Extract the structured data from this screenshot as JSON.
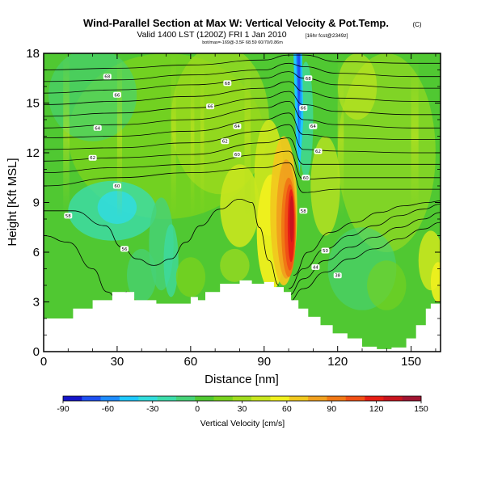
{
  "titles": {
    "main": "Wind-Parallel Section at Max W: Vertical Velocity & Pot.Temp.",
    "main_flag": "(C)",
    "valid": "Valid 1400 LST (1200Z) FRI 1 Jan 2010",
    "valid_suffix": "[16hr fcst@2349z]",
    "subtitle": "bot/max=-169@-3.5F 68.59 60/70/0.86m"
  },
  "chart_data": {
    "type": "heatmap",
    "title": "Wind-Parallel Section at Max W: Vertical Velocity & Pot.Temp.",
    "xlabel": "Distance [nm]",
    "ylabel": "Height [Kft MSL]",
    "xlim": [
      0,
      162
    ],
    "ylim": [
      0,
      18
    ],
    "xticks": [
      0,
      30,
      60,
      90,
      120,
      150
    ],
    "yticks": [
      0,
      3,
      6,
      9,
      12,
      15,
      18
    ],
    "colorbar": {
      "label": "Vertical Velocity [cm/s]",
      "ticks": [
        -90,
        -60,
        -30,
        0,
        30,
        60,
        90,
        120,
        150
      ],
      "range": [
        -90,
        150
      ],
      "colors": [
        "#1414c8",
        "#1e50f0",
        "#1e8cff",
        "#1ec8ff",
        "#32dcdc",
        "#3cdcaa",
        "#46d278",
        "#50c832",
        "#78d21e",
        "#a0dc1e",
        "#c8e61e",
        "#f0f01e",
        "#f0c81e",
        "#f0a01e",
        "#f07814",
        "#f05014",
        "#e61e14",
        "#c8141e",
        "#a01432"
      ]
    },
    "terrain": [
      [
        0,
        2
      ],
      [
        8,
        2
      ],
      [
        12,
        2.6
      ],
      [
        16,
        2.6
      ],
      [
        20,
        3.1
      ],
      [
        25,
        3.1
      ],
      [
        28,
        3.6
      ],
      [
        34,
        3.6
      ],
      [
        37,
        3.1
      ],
      [
        44,
        3.1
      ],
      [
        46,
        2.9
      ],
      [
        58,
        2.9
      ],
      [
        60,
        3.3
      ],
      [
        63,
        3.1
      ],
      [
        66,
        3.6
      ],
      [
        70,
        3.6
      ],
      [
        72,
        4.1
      ],
      [
        76,
        4.1
      ],
      [
        80,
        4.3
      ],
      [
        85,
        4.1
      ],
      [
        90,
        4.2
      ],
      [
        94,
        3.9
      ],
      [
        98,
        3.6
      ],
      [
        101,
        3.1
      ],
      [
        104,
        2.6
      ],
      [
        108,
        2.1
      ],
      [
        113,
        1.6
      ],
      [
        118,
        1.1
      ],
      [
        124,
        0.8
      ],
      [
        130,
        0.3
      ],
      [
        136,
        0.15
      ],
      [
        142,
        0.25
      ],
      [
        148,
        0.8
      ],
      [
        152,
        1.6
      ],
      [
        156,
        2.6
      ],
      [
        158,
        2.9
      ],
      [
        162,
        3.0
      ]
    ],
    "updraft_regions": [
      {
        "name": "main updraft",
        "x": [
          92,
          106
        ],
        "y": [
          3.5,
          11
        ],
        "max_cm_s": 150
      },
      {
        "name": "updraft north",
        "x": [
          85,
          98
        ],
        "y": [
          6,
          12
        ],
        "max_cm_s": 60
      },
      {
        "name": "updraft east",
        "x": [
          155,
          162
        ],
        "y": [
          3.5,
          9
        ],
        "max_cm_s": 45
      }
    ],
    "downdraft_regions": [
      {
        "name": "upper downdraft",
        "x": [
          100,
          106
        ],
        "y": [
          10,
          18
        ],
        "min_cm_s": -90
      },
      {
        "name": "lee downdraft",
        "x": [
          10,
          40
        ],
        "y": [
          7,
          10
        ],
        "min_cm_s": -35
      }
    ],
    "isentropes": {
      "series": [
        {
          "name": "theta-ul-1",
          "label": "68",
          "x": [
            0,
            30,
            60,
            90,
            100,
            106,
            120,
            150,
            162
          ],
          "y": [
            17.0,
            17.1,
            17.3,
            17.6,
            17.9,
            17.9,
            17.5,
            17.4,
            17.4
          ]
        },
        {
          "name": "theta-ul-2",
          "label": "66",
          "x": [
            0,
            30,
            60,
            90,
            100,
            106,
            120,
            150,
            162
          ],
          "y": [
            16.3,
            16.4,
            16.7,
            17.0,
            17.4,
            17.2,
            16.8,
            16.6,
            16.6
          ]
        },
        {
          "name": "theta-ul-3",
          "label": "64",
          "x": [
            0,
            30,
            60,
            90,
            100,
            106,
            120,
            150,
            162
          ],
          "y": [
            15.6,
            15.8,
            16.1,
            16.5,
            16.9,
            16.5,
            16.1,
            15.9,
            15.9
          ]
        },
        {
          "name": "theta-ul-4",
          "label": "62",
          "x": [
            0,
            30,
            60,
            90,
            100,
            106,
            120,
            150,
            162
          ],
          "y": [
            14.9,
            15.1,
            15.4,
            15.9,
            16.3,
            15.7,
            15.3,
            15.1,
            15.1
          ]
        },
        {
          "name": "theta-ul-5",
          "label": "60",
          "x": [
            0,
            30,
            60,
            90,
            100,
            106,
            120,
            150,
            162
          ],
          "y": [
            14.2,
            14.4,
            14.7,
            15.3,
            15.7,
            14.9,
            14.5,
            14.3,
            14.3
          ]
        },
        {
          "name": "theta-ul-6",
          "label": "58",
          "x": [
            0,
            30,
            60,
            90,
            100,
            106,
            120,
            150,
            162
          ],
          "y": [
            13.5,
            13.7,
            14.0,
            14.7,
            15.1,
            14.0,
            13.7,
            13.5,
            13.5
          ]
        },
        {
          "name": "theta-ul-7",
          "label": "56",
          "x": [
            0,
            30,
            60,
            90,
            100,
            106,
            120,
            150,
            162
          ],
          "y": [
            12.9,
            13.0,
            13.3,
            14.0,
            14.4,
            13.1,
            12.9,
            12.8,
            12.8
          ]
        },
        {
          "name": "theta-ul-8",
          "label": "54",
          "x": [
            0,
            30,
            60,
            90,
            100,
            106,
            120,
            150,
            162
          ],
          "y": [
            12.2,
            12.3,
            12.6,
            13.3,
            13.7,
            12.2,
            12.1,
            12.0,
            12.0
          ]
        },
        {
          "name": "theta-ul-9",
          "label": "52",
          "x": [
            0,
            30,
            60,
            90,
            100,
            106,
            120,
            150,
            162
          ],
          "y": [
            11.5,
            11.7,
            11.9,
            12.6,
            12.9,
            11.3,
            11.3,
            11.3,
            11.3
          ]
        },
        {
          "name": "theta-ul-10",
          "label": "50",
          "x": [
            0,
            30,
            60,
            90,
            100,
            106,
            120,
            150,
            162
          ],
          "y": [
            10.8,
            11.1,
            11.3,
            11.9,
            12.1,
            10.4,
            10.5,
            10.5,
            10.5
          ]
        },
        {
          "name": "theta-ul-11",
          "label": "48",
          "x": [
            0,
            30,
            60,
            90,
            100,
            106,
            120,
            150,
            162
          ],
          "y": [
            10.0,
            10.5,
            10.8,
            11.1,
            11.4,
            9.6,
            9.8,
            9.8,
            9.8
          ]
        },
        {
          "name": "theta-lw-1",
          "label": "46",
          "x": [
            0,
            12,
            25,
            32,
            38,
            45,
            52,
            58,
            64,
            72,
            80,
            85,
            88,
            92,
            96
          ],
          "y": [
            8.5,
            8.5,
            7.6,
            6.3,
            5.6,
            5.2,
            5.6,
            6.6,
            7.6,
            8.6,
            9.2,
            9.0,
            7.5,
            5.5,
            4.0
          ]
        },
        {
          "name": "theta-lw-2",
          "label": "",
          "x": [
            0,
            10,
            20,
            26,
            30,
            34
          ],
          "y": [
            7.0,
            6.6,
            5.0,
            3.6,
            3.2,
            3.6
          ]
        },
        {
          "name": "theta-r-1",
          "label": "44",
          "x": [
            100,
            106,
            115,
            125,
            135,
            145,
            155,
            162
          ],
          "y": [
            3.0,
            3.8,
            4.8,
            5.6,
            6.2,
            6.8,
            7.4,
            7.8
          ]
        },
        {
          "name": "theta-r-2",
          "label": "42",
          "x": [
            100,
            106,
            115,
            125,
            135,
            145,
            155,
            162
          ],
          "y": [
            3.4,
            4.4,
            5.5,
            6.3,
            6.9,
            7.5,
            8.0,
            8.4
          ]
        },
        {
          "name": "theta-r-3",
          "label": "40",
          "x": [
            100,
            106,
            115,
            125,
            135,
            145,
            155,
            162
          ],
          "y": [
            3.8,
            5.0,
            6.2,
            7.0,
            7.6,
            8.2,
            8.6,
            8.9
          ]
        },
        {
          "name": "theta-r-4",
          "label": "38",
          "x": [
            102,
            108,
            117,
            127,
            137,
            147,
            157,
            162
          ],
          "y": [
            4.6,
            6.0,
            7.2,
            7.8,
            8.4,
            8.8,
            9.0,
            9.1
          ]
        }
      ]
    },
    "contour_labels": [
      {
        "text": "68",
        "x": 26,
        "y": 16.6
      },
      {
        "text": "66",
        "x": 30,
        "y": 15.5
      },
      {
        "text": "64",
        "x": 22,
        "y": 13.5
      },
      {
        "text": "62",
        "x": 20,
        "y": 11.7
      },
      {
        "text": "60",
        "x": 30,
        "y": 10.0
      },
      {
        "text": "58",
        "x": 10,
        "y": 8.2
      },
      {
        "text": "56",
        "x": 33,
        "y": 6.2
      },
      {
        "text": "68",
        "x": 75,
        "y": 16.2
      },
      {
        "text": "66",
        "x": 68,
        "y": 14.8
      },
      {
        "text": "64",
        "x": 79,
        "y": 13.6
      },
      {
        "text": "62",
        "x": 74,
        "y": 12.7
      },
      {
        "text": "60",
        "x": 79,
        "y": 11.9
      },
      {
        "text": "68",
        "x": 108,
        "y": 16.5
      },
      {
        "text": "66",
        "x": 106,
        "y": 14.7
      },
      {
        "text": "64",
        "x": 110,
        "y": 13.6
      },
      {
        "text": "62",
        "x": 112,
        "y": 12.1
      },
      {
        "text": "60",
        "x": 107,
        "y": 10.5
      },
      {
        "text": "58",
        "x": 106,
        "y": 8.5
      },
      {
        "text": "50",
        "x": 115,
        "y": 6.1
      },
      {
        "text": "44",
        "x": 111,
        "y": 5.1
      },
      {
        "text": "38",
        "x": 120,
        "y": 4.6
      }
    ]
  }
}
